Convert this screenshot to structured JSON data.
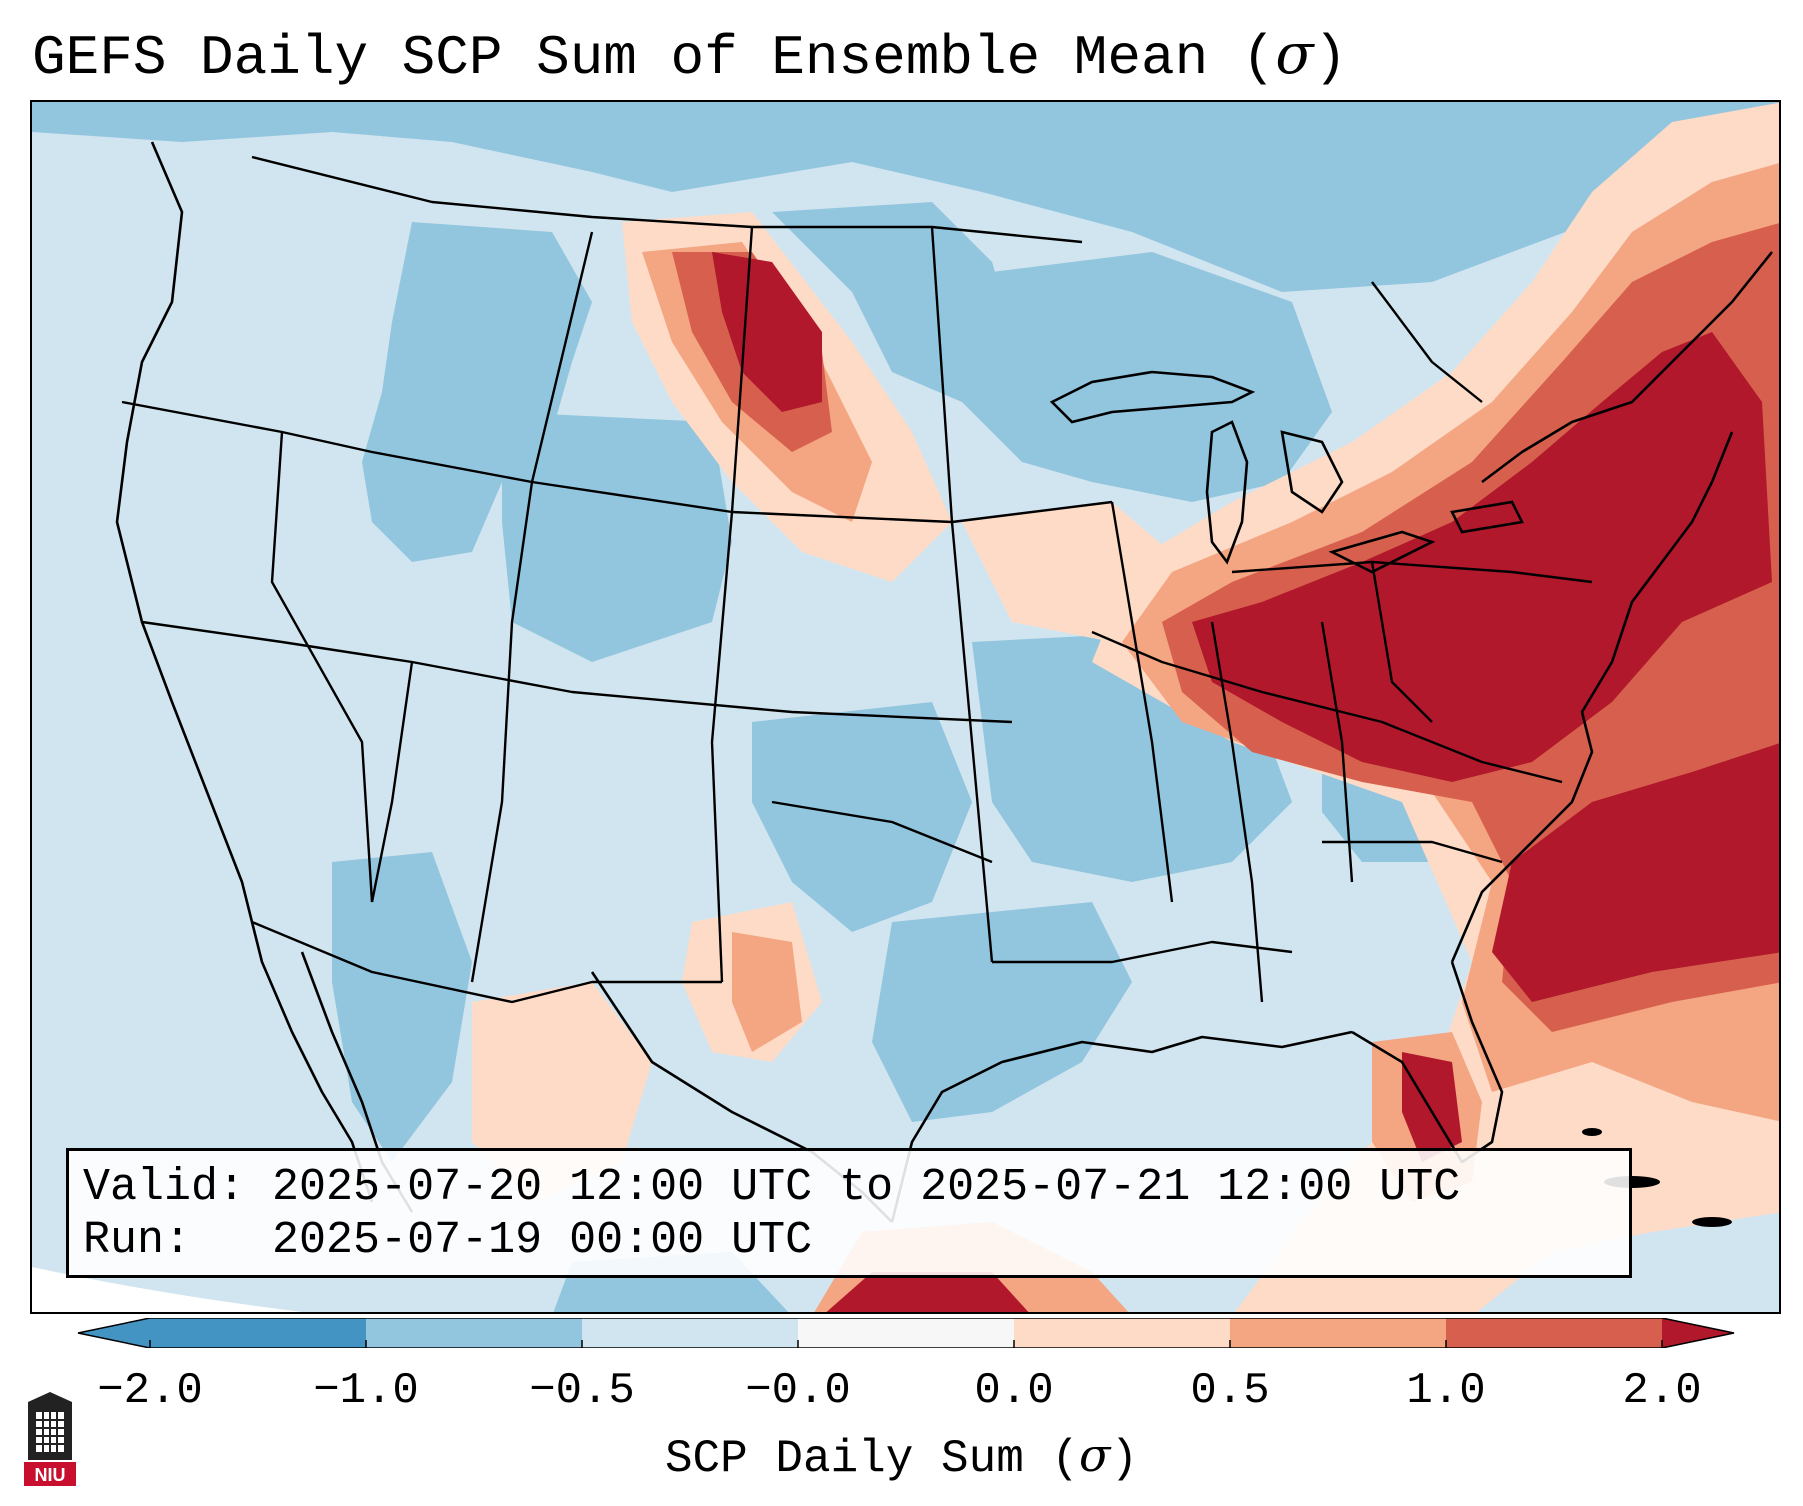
{
  "title": {
    "prefix": "GEFS Daily SCP Sum of Ensemble Mean (",
    "symbol": "σ",
    "suffix": ")"
  },
  "info": {
    "valid_label": "Valid:",
    "valid_value": "2025-07-20 12:00 UTC to 2025-07-21 12:00 UTC",
    "run_label": "Run:",
    "run_value": "2025-07-19 00:00 UTC"
  },
  "colorbar": {
    "ticks": [
      "−2.0",
      "−1.0",
      "−0.5",
      "−0.0",
      "0.0",
      "0.5",
      "1.0",
      "2.0"
    ],
    "label_prefix": "SCP Daily Sum (",
    "label_symbol": "σ",
    "label_suffix": ")",
    "colors": [
      "#4393c3",
      "#92c5de",
      "#d1e5f0",
      "#f7f7f7",
      "#fddbc7",
      "#f4a582",
      "#d6604d",
      "#b2182b"
    ],
    "extend": "both"
  },
  "logo": {
    "text": "NIU"
  },
  "colors": {
    "ocean": "#d1e5f0",
    "strong_negative": "#4393c3",
    "negative": "#92c5de",
    "weak_negative": "#d1e5f0",
    "weak_positive": "#fddbc7",
    "positive": "#f4a582",
    "strong_positive": "#d6604d",
    "extreme_positive": "#b2182b",
    "brand_red": "#c8102e"
  }
}
